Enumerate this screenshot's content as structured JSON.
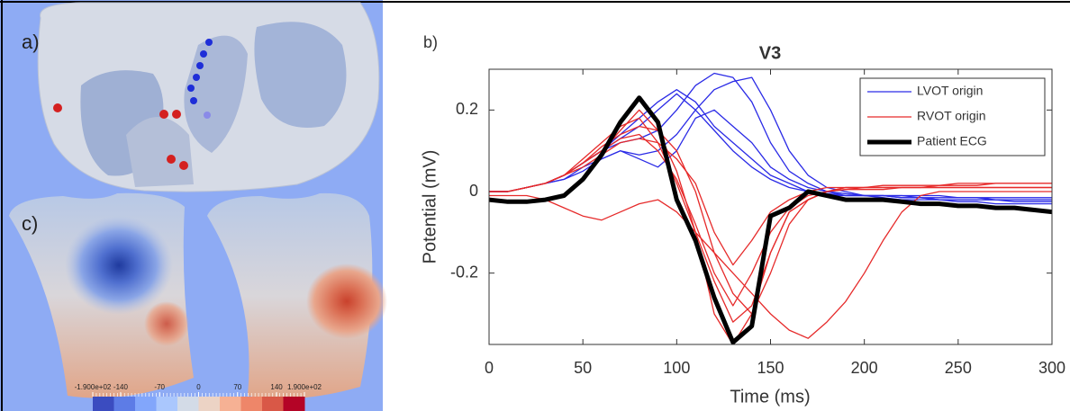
{
  "panels": {
    "a": {
      "label": "a)"
    },
    "c": {
      "label": "c)",
      "colorbar": {
        "lim": [
          -190,
          190
        ],
        "ticks": [
          {
            "value": -190,
            "label": "-1.900e+02"
          },
          -140,
          -70,
          0,
          70,
          140,
          {
            "value": 190,
            "label": "1.900e+02"
          }
        ],
        "colors": [
          "#3b4cc0",
          "#5d7ce6",
          "#82a6fb",
          "#aac7fd",
          "#d3dbe7",
          "#ecd3c5",
          "#f6b194",
          "#ee8669",
          "#d95847",
          "#b40426"
        ]
      }
    }
  },
  "chart_data": {
    "type": "line",
    "panel_label": "b)",
    "title": "V3",
    "xlabel": "Time  (ms)",
    "ylabel": "Potential (mV)",
    "x": [
      0,
      10,
      20,
      30,
      40,
      50,
      60,
      70,
      80,
      90,
      100,
      110,
      120,
      130,
      140,
      150,
      160,
      170,
      180,
      190,
      200,
      210,
      220,
      230,
      240,
      250,
      260,
      270,
      280,
      290,
      300
    ],
    "xlim": [
      0,
      300
    ],
    "xticks": [
      0,
      50,
      100,
      150,
      200,
      250,
      300
    ],
    "ylim": [
      -0.375,
      0.3
    ],
    "yticks": [
      -0.2,
      0,
      0.2
    ],
    "legend": "upper right",
    "series": [
      {
        "name": "LVOT origin",
        "color": "#2a2ae6",
        "linewidth": 1.3,
        "values": [
          [
            0,
            0,
            0.01,
            0.02,
            0.04,
            0.07,
            0.1,
            0.13,
            0.16,
            0.2,
            0.24,
            0.2,
            0.15,
            0.1,
            0.06,
            0.03,
            0.01,
            0,
            -0.01,
            -0.01,
            -0.01,
            -0.01,
            -0.015,
            -0.015,
            -0.02,
            -0.02,
            -0.02,
            -0.02,
            -0.025,
            -0.025,
            -0.025
          ],
          [
            0,
            0,
            0.01,
            0.02,
            0.04,
            0.07,
            0.1,
            0.12,
            0.13,
            0.15,
            0.2,
            0.26,
            0.29,
            0.28,
            0.22,
            0.12,
            0.05,
            0.02,
            0,
            -0.01,
            -0.01,
            -0.015,
            -0.02,
            -0.02,
            -0.02,
            -0.025,
            -0.025,
            -0.03,
            -0.03,
            -0.03,
            -0.03
          ],
          [
            0,
            0,
            0.01,
            0.02,
            0.03,
            0.06,
            0.08,
            0.1,
            0.09,
            0.1,
            0.14,
            0.2,
            0.25,
            0.27,
            0.28,
            0.2,
            0.1,
            0.04,
            0.01,
            0,
            -0.01,
            -0.01,
            -0.015,
            -0.015,
            -0.02,
            -0.02,
            -0.02,
            -0.02,
            -0.02,
            -0.02,
            -0.02
          ],
          [
            0,
            0,
            0.01,
            0.02,
            0.04,
            0.07,
            0.1,
            0.14,
            0.18,
            0.22,
            0.25,
            0.22,
            0.16,
            0.12,
            0.08,
            0.04,
            0.02,
            0,
            -0.005,
            -0.01,
            -0.01,
            -0.01,
            -0.01,
            -0.015,
            -0.015,
            -0.015,
            -0.015,
            -0.02,
            -0.02,
            -0.02,
            -0.02
          ],
          [
            0,
            0,
            0.01,
            0.02,
            0.03,
            0.05,
            0.08,
            0.1,
            0.08,
            0.06,
            0.1,
            0.18,
            0.2,
            0.16,
            0.12,
            0.06,
            0.03,
            0.01,
            0,
            -0.005,
            -0.01,
            -0.01,
            -0.01,
            -0.01,
            -0.01,
            -0.015,
            -0.015,
            -0.015,
            -0.015,
            -0.015,
            -0.015
          ]
        ]
      },
      {
        "name": "RVOT origin",
        "color": "#e62a2a",
        "linewidth": 1.3,
        "values": [
          [
            -0.01,
            -0.01,
            -0.01,
            -0.02,
            -0.04,
            -0.06,
            -0.07,
            -0.05,
            -0.03,
            -0.02,
            -0.05,
            -0.1,
            -0.15,
            -0.2,
            -0.25,
            -0.3,
            -0.34,
            -0.36,
            -0.32,
            -0.27,
            -0.2,
            -0.12,
            -0.05,
            -0.01,
            0,
            0,
            0,
            0,
            0,
            0,
            0
          ],
          [
            0,
            0,
            0.01,
            0.02,
            0.04,
            0.08,
            0.12,
            0.16,
            0.18,
            0.12,
            0.02,
            -0.1,
            -0.22,
            -0.32,
            -0.28,
            -0.15,
            -0.05,
            -0.02,
            0,
            0.01,
            0.01,
            0.01,
            0.01,
            0.01,
            0.015,
            0.015,
            0.015,
            0.02,
            0.02,
            0.02,
            0.02
          ],
          [
            0,
            0,
            0.01,
            0.02,
            0.04,
            0.07,
            0.1,
            0.13,
            0.14,
            0.1,
            0.03,
            -0.08,
            -0.2,
            -0.28,
            -0.2,
            -0.1,
            -0.04,
            -0.01,
            0,
            0.005,
            0.005,
            0.005,
            0.01,
            0.01,
            0.01,
            0.01,
            0.01,
            0.01,
            0.01,
            0.01,
            0.01
          ],
          [
            0,
            0,
            0.01,
            0.02,
            0.04,
            0.07,
            0.1,
            0.15,
            0.2,
            0.15,
            0.05,
            -0.1,
            -0.3,
            -0.375,
            -0.3,
            -0.15,
            -0.05,
            -0.02,
            0,
            0.005,
            0.01,
            0.01,
            0.01,
            0.01,
            0.01,
            0.01,
            0.01,
            0.01,
            0.01,
            0.01,
            0.01
          ],
          [
            0,
            0,
            0.01,
            0.02,
            0.04,
            0.06,
            0.09,
            0.12,
            0.13,
            0.12,
            0.08,
            0.02,
            -0.1,
            -0.18,
            -0.12,
            -0.05,
            -0.02,
            0,
            0.01,
            0.01,
            0.01,
            0.015,
            0.015,
            0.015,
            0.015,
            0.02,
            0.02,
            0.02,
            0.02,
            0.02,
            0.02
          ],
          [
            0,
            0,
            0.01,
            0.02,
            0.04,
            0.07,
            0.11,
            0.14,
            0.16,
            0.15,
            0.1,
            0,
            -0.15,
            -0.25,
            -0.3,
            -0.2,
            -0.08,
            -0.02,
            0,
            0.01,
            0.01,
            0.01,
            0.01,
            0.01,
            0.01,
            0.01,
            0.01,
            0.01,
            0.01,
            0.01,
            0.01
          ]
        ]
      },
      {
        "name": "Patient ECG",
        "color": "#000000",
        "linewidth": 5,
        "values": [
          [
            -0.02,
            -0.025,
            -0.025,
            -0.02,
            -0.01,
            0.03,
            0.09,
            0.17,
            0.23,
            0.17,
            -0.02,
            -0.12,
            -0.26,
            -0.37,
            -0.33,
            -0.06,
            -0.04,
            0,
            -0.01,
            -0.02,
            -0.02,
            -0.02,
            -0.025,
            -0.03,
            -0.03,
            -0.035,
            -0.035,
            -0.04,
            -0.04,
            -0.045,
            -0.05
          ]
        ]
      }
    ]
  }
}
